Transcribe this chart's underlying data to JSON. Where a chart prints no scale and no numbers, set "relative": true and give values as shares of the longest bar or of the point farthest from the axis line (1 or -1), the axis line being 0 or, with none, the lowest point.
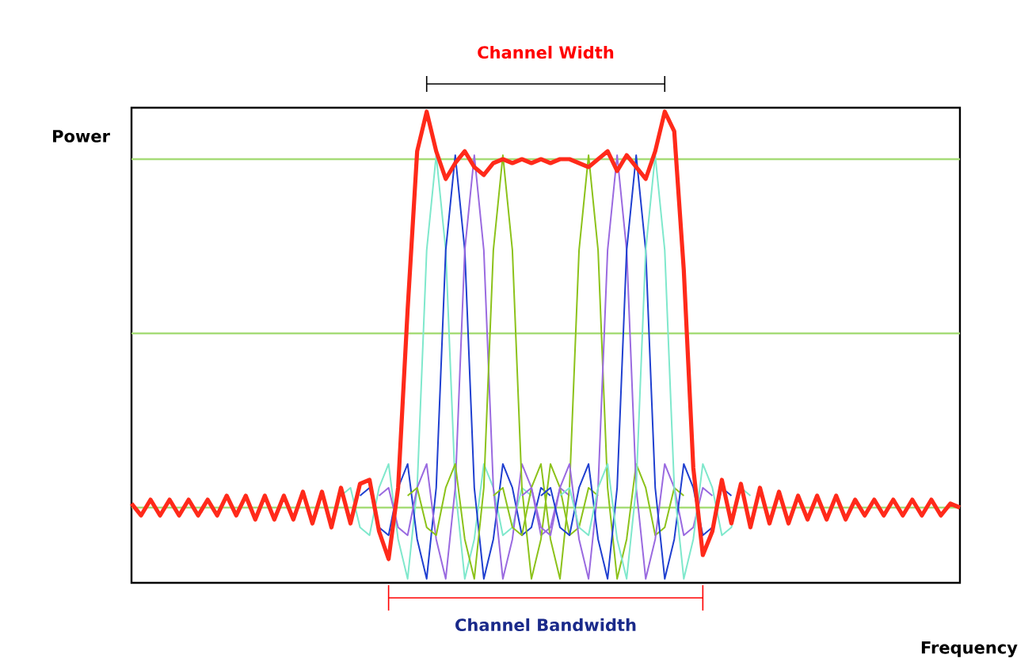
{
  "chart_data": {
    "type": "line",
    "relative": true,
    "xlabel": "Frequency",
    "ylabel": "Power",
    "annotations": [
      "Channel Width",
      "Channel Bandwidth"
    ],
    "categories": [
      null,
      null,
      null,
      null,
      null,
      null,
      null,
      null,
      null,
      null,
      null,
      null,
      null,
      null,
      null,
      null,
      null,
      null,
      null,
      null,
      null,
      null,
      null,
      null,
      null,
      null,
      null,
      null,
      null,
      null,
      null,
      null,
      null,
      null,
      null,
      null,
      null,
      null,
      null,
      null,
      null,
      null,
      null,
      null,
      null,
      null,
      null,
      null,
      null,
      null,
      null,
      null,
      null,
      null,
      null,
      null,
      null,
      null,
      null,
      null,
      null,
      null,
      null,
      null,
      null,
      null,
      null,
      null,
      null,
      null,
      null,
      null,
      null,
      null,
      null,
      null,
      null,
      null,
      null,
      null,
      null,
      null,
      null,
      null,
      null,
      null,
      null,
      null
    ],
    "ref_lines": [
      {
        "axis": "y",
        "value": 0.88,
        "color": "#a6dc78"
      },
      {
        "axis": "y",
        "value": 0.44,
        "color": "#a6dc78"
      },
      {
        "axis": "y",
        "value": 0,
        "color": "#a6dc78"
      }
    ],
    "series": [
      {
        "color": "#7fe8cc",
        "values": [
          null,
          null,
          null,
          null,
          null,
          null,
          null,
          null,
          null,
          null,
          null,
          null,
          null,
          null,
          null,
          null,
          null,
          null,
          null,
          null,
          null,
          null,
          0.03,
          0.05,
          -0.05,
          -0.07,
          0.05,
          0.11,
          -0.08,
          -0.18,
          0.05,
          0.65,
          0.89,
          0.65,
          0.05,
          -0.18,
          -0.08,
          0.11,
          0.05,
          -0.07,
          -0.05,
          0.05,
          0.03,
          null,
          null,
          null,
          null,
          null,
          null,
          null,
          null,
          null,
          null,
          null,
          null,
          null,
          null,
          null,
          null,
          null,
          null,
          null,
          null,
          null,
          null,
          null,
          null,
          null,
          null,
          null,
          null,
          null,
          null,
          null,
          null,
          null,
          null,
          null,
          null,
          null,
          null,
          null,
          null,
          null,
          null,
          null,
          null,
          null
        ]
      },
      {
        "color": "#1f3fd0",
        "values": [
          null,
          null,
          null,
          null,
          null,
          null,
          null,
          null,
          null,
          null,
          null,
          null,
          null,
          null,
          null,
          null,
          null,
          null,
          null,
          null,
          null,
          null,
          null,
          null,
          0.03,
          0.05,
          -0.05,
          -0.07,
          0.05,
          0.11,
          -0.08,
          -0.18,
          0.05,
          0.65,
          0.89,
          0.65,
          0.05,
          -0.18,
          -0.08,
          0.11,
          0.05,
          -0.07,
          -0.05,
          0.05,
          0.03,
          null,
          null,
          null,
          null,
          null,
          null,
          null,
          null,
          null,
          null,
          null,
          null,
          null,
          null,
          null,
          null,
          null,
          null,
          null,
          null,
          null,
          null,
          null,
          null,
          null,
          null,
          null,
          null,
          null,
          null,
          null,
          null,
          null,
          null,
          null,
          null,
          null,
          null,
          null,
          null,
          null,
          null,
          null
        ]
      },
      {
        "color": "#9a6ae0",
        "values": [
          null,
          null,
          null,
          null,
          null,
          null,
          null,
          null,
          null,
          null,
          null,
          null,
          null,
          null,
          null,
          null,
          null,
          null,
          null,
          null,
          null,
          null,
          null,
          null,
          null,
          null,
          0.03,
          0.05,
          -0.05,
          -0.07,
          0.05,
          0.11,
          -0.08,
          -0.18,
          0.05,
          0.65,
          0.89,
          0.65,
          0.05,
          -0.18,
          -0.08,
          0.11,
          0.05,
          -0.07,
          -0.05,
          0.05,
          0.03,
          null,
          null,
          null,
          null,
          null,
          null,
          null,
          null,
          null,
          null,
          null,
          null,
          null,
          null,
          null,
          null,
          null,
          null,
          null,
          null,
          null,
          null,
          null,
          null,
          null,
          null,
          null,
          null,
          null,
          null,
          null,
          null,
          null,
          null,
          null,
          null,
          null,
          null,
          null,
          null,
          null
        ]
      },
      {
        "color": "#8cc21a",
        "values": [
          null,
          null,
          null,
          null,
          null,
          null,
          null,
          null,
          null,
          null,
          null,
          null,
          null,
          null,
          null,
          null,
          null,
          null,
          null,
          null,
          null,
          null,
          null,
          null,
          null,
          null,
          null,
          null,
          null,
          0.03,
          0.05,
          -0.05,
          -0.07,
          0.05,
          0.11,
          -0.08,
          -0.18,
          0.05,
          0.65,
          0.89,
          0.65,
          0.05,
          -0.18,
          -0.08,
          0.11,
          0.05,
          -0.07,
          -0.05,
          0.05,
          0.03,
          null,
          null,
          null,
          null,
          null,
          null,
          null,
          null,
          null,
          null,
          null,
          null,
          null,
          null,
          null,
          null,
          null,
          null,
          null,
          null,
          null,
          null,
          null,
          null,
          null,
          null,
          null,
          null,
          null,
          null,
          null,
          null,
          null,
          null,
          null,
          null,
          null,
          null
        ]
      },
      {
        "color": "#8cc21a",
        "values": [
          null,
          null,
          null,
          null,
          null,
          null,
          null,
          null,
          null,
          null,
          null,
          null,
          null,
          null,
          null,
          null,
          null,
          null,
          null,
          null,
          null,
          null,
          null,
          null,
          null,
          null,
          null,
          null,
          null,
          null,
          null,
          null,
          null,
          null,
          null,
          null,
          null,
          null,
          0.03,
          0.05,
          -0.05,
          -0.07,
          0.05,
          0.11,
          -0.08,
          -0.18,
          0.05,
          0.65,
          0.89,
          0.65,
          0.05,
          -0.18,
          -0.08,
          0.11,
          0.05,
          -0.07,
          -0.05,
          0.05,
          0.03,
          null,
          null,
          null,
          null,
          null,
          null,
          null,
          null,
          null,
          null,
          null,
          null,
          null,
          null,
          null,
          null,
          null,
          null,
          null,
          null,
          null,
          null,
          null,
          null,
          null,
          null,
          null,
          null,
          null
        ]
      },
      {
        "color": "#9a6ae0",
        "values": [
          null,
          null,
          null,
          null,
          null,
          null,
          null,
          null,
          null,
          null,
          null,
          null,
          null,
          null,
          null,
          null,
          null,
          null,
          null,
          null,
          null,
          null,
          null,
          null,
          null,
          null,
          null,
          null,
          null,
          null,
          null,
          null,
          null,
          null,
          null,
          null,
          null,
          null,
          null,
          null,
          null,
          0.03,
          0.05,
          -0.05,
          -0.07,
          0.05,
          0.11,
          -0.08,
          -0.18,
          0.05,
          0.65,
          0.89,
          0.65,
          0.05,
          -0.18,
          -0.08,
          0.11,
          0.05,
          -0.07,
          -0.05,
          0.05,
          0.03,
          null,
          null,
          null,
          null,
          null,
          null,
          null,
          null,
          null,
          null,
          null,
          null,
          null,
          null,
          null,
          null,
          null,
          null,
          null,
          null,
          null,
          null,
          null,
          null,
          null,
          null
        ]
      },
      {
        "color": "#1f3fd0",
        "values": [
          null,
          null,
          null,
          null,
          null,
          null,
          null,
          null,
          null,
          null,
          null,
          null,
          null,
          null,
          null,
          null,
          null,
          null,
          null,
          null,
          null,
          null,
          null,
          null,
          null,
          null,
          null,
          null,
          null,
          null,
          null,
          null,
          null,
          null,
          null,
          null,
          null,
          null,
          null,
          null,
          null,
          null,
          null,
          0.03,
          0.05,
          -0.05,
          -0.07,
          0.05,
          0.11,
          -0.08,
          -0.18,
          0.05,
          0.65,
          0.89,
          0.65,
          0.05,
          -0.18,
          -0.08,
          0.11,
          0.05,
          -0.07,
          -0.05,
          0.05,
          0.03,
          null,
          null,
          null,
          null,
          null,
          null,
          null,
          null,
          null,
          null,
          null,
          null,
          null,
          null,
          null,
          null,
          null,
          null,
          null,
          null,
          null,
          null,
          null,
          null
        ]
      },
      {
        "color": "#7fe8cc",
        "values": [
          null,
          null,
          null,
          null,
          null,
          null,
          null,
          null,
          null,
          null,
          null,
          null,
          null,
          null,
          null,
          null,
          null,
          null,
          null,
          null,
          null,
          null,
          null,
          null,
          null,
          null,
          null,
          null,
          null,
          null,
          null,
          null,
          null,
          null,
          null,
          null,
          null,
          null,
          null,
          null,
          null,
          null,
          null,
          null,
          null,
          0.03,
          0.05,
          -0.05,
          -0.07,
          0.05,
          0.11,
          -0.08,
          -0.18,
          0.05,
          0.65,
          0.89,
          0.65,
          0.05,
          -0.18,
          -0.08,
          0.11,
          0.05,
          -0.07,
          -0.05,
          0.05,
          0.03,
          null,
          null,
          null,
          null,
          null,
          null,
          null,
          null,
          null,
          null,
          null,
          null,
          null,
          null,
          null,
          null,
          null,
          null,
          null,
          null,
          null,
          null
        ]
      },
      {
        "color": "#ff2a1a",
        "values": [
          0.01,
          -0.02,
          0.02,
          -0.02,
          0.02,
          -0.02,
          0.02,
          -0.02,
          0.02,
          -0.02,
          0.03,
          -0.02,
          0.03,
          -0.03,
          0.03,
          -0.03,
          0.03,
          -0.03,
          0.04,
          -0.04,
          0.04,
          -0.05,
          0.05,
          -0.04,
          0.06,
          0.07,
          -0.06,
          -0.13,
          0.05,
          0.5,
          0.9,
          1.0,
          0.9,
          0.83,
          0.87,
          0.9,
          0.86,
          0.84,
          0.87,
          0.88,
          0.87,
          0.88,
          0.87,
          0.88,
          0.87,
          0.88,
          0.88,
          0.87,
          0.86,
          0.88,
          0.9,
          0.85,
          0.89,
          0.86,
          0.83,
          0.9,
          1.0,
          0.95,
          0.6,
          0.1,
          -0.12,
          -0.06,
          0.07,
          -0.04,
          0.06,
          -0.05,
          0.05,
          -0.04,
          0.04,
          -0.04,
          0.03,
          -0.03,
          0.03,
          -0.03,
          0.03,
          -0.03,
          0.02,
          -0.02,
          0.02,
          -0.02,
          0.02,
          -0.02,
          0.02,
          -0.02,
          0.02,
          -0.02,
          0.01,
          0.0
        ]
      }
    ]
  }
}
